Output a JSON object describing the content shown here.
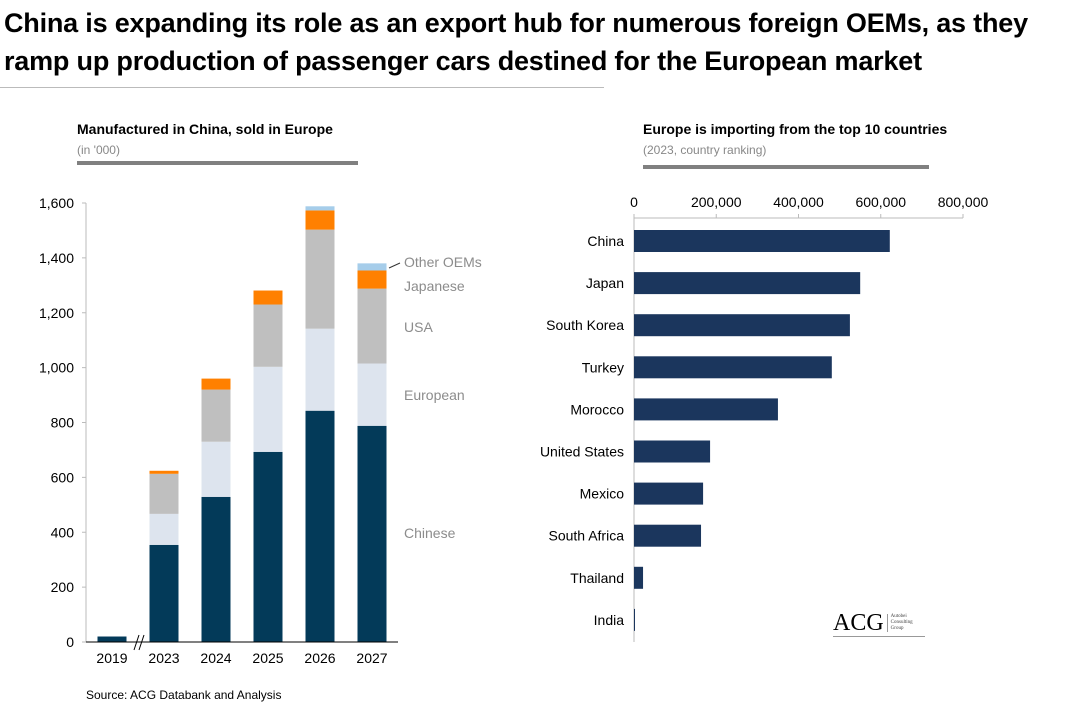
{
  "title": "China is expanding its role as an export hub for numerous foreign OEMs, as they ramp up production of passenger cars destined for the European market",
  "source": "Source: ACG Databank and Analysis",
  "logo": {
    "main": "ACG",
    "sub": [
      "Autobei",
      "Consulting",
      "Group"
    ]
  },
  "chart_data": [
    {
      "type": "bar",
      "stacked": true,
      "title": "Manufactured in China, sold in Europe",
      "subtitle": "(in '000)",
      "categories": [
        "2019",
        "2023",
        "2024",
        "2025",
        "2026",
        "2027"
      ],
      "axis_break_between": [
        "2019",
        "2023"
      ],
      "ylim": [
        0,
        1600
      ],
      "yticks": [
        "0",
        "200",
        "400",
        "600",
        "800",
        "1,000",
        "1,200",
        "1,400",
        "1,600"
      ],
      "legend_placement": "right (inline labels)",
      "series": [
        {
          "name": "Chinese",
          "color": "#033a59",
          "values": [
            20,
            354,
            529,
            693,
            843,
            788
          ]
        },
        {
          "name": "European",
          "color": "#dde4ee",
          "values": [
            0,
            113,
            201,
            310,
            299,
            227
          ]
        },
        {
          "name": "USA",
          "color": "#bfbfbf",
          "values": [
            0,
            146,
            190,
            227,
            361,
            273
          ]
        },
        {
          "name": "Japanese",
          "color": "#ff8000",
          "values": [
            0,
            11,
            40,
            51,
            70,
            66
          ]
        },
        {
          "name": "Other OEMs",
          "color": "#a6cdea",
          "values": [
            0,
            0,
            0,
            0,
            15,
            26
          ]
        }
      ]
    },
    {
      "type": "bar",
      "orientation": "horizontal",
      "title": "Europe is importing from the top 10 countries",
      "subtitle": "(2023, country ranking)",
      "categories": [
        "China",
        "Japan",
        "South Korea",
        "Turkey",
        "Morocco",
        "United States",
        "Mexico",
        "South Africa",
        "Thailand",
        "India"
      ],
      "values": [
        622000,
        550000,
        525000,
        481000,
        350000,
        185000,
        168000,
        163000,
        22000,
        2000
      ],
      "color": "#1b365d",
      "xlim": [
        0,
        800000
      ],
      "xticks": [
        "0",
        "200,000",
        "400,000",
        "600,000",
        "800,000"
      ]
    }
  ]
}
